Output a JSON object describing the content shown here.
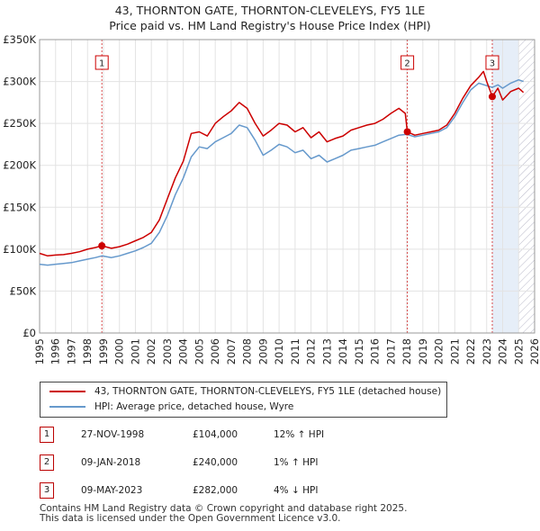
{
  "header": {
    "title_line1": "43, THORNTON GATE, THORNTON-CLEVELEYS, FY5 1LE",
    "title_line2": "Price paid vs. HM Land Registry's House Price Index (HPI)"
  },
  "chart_data": {
    "type": "line",
    "xlim": [
      1995,
      2026
    ],
    "ylim": [
      0,
      350000
    ],
    "x_ticks": [
      "1995",
      "1996",
      "1997",
      "1998",
      "1999",
      "2000",
      "2001",
      "2002",
      "2003",
      "2004",
      "2005",
      "2006",
      "2007",
      "2008",
      "2009",
      "2010",
      "2011",
      "2012",
      "2013",
      "2014",
      "2015",
      "2016",
      "2017",
      "2018",
      "2019",
      "2020",
      "2021",
      "2022",
      "2023",
      "2024",
      "2025",
      "2026"
    ],
    "y_ticks": [
      {
        "value": 0,
        "label": "£0"
      },
      {
        "value": 50000,
        "label": "£50K"
      },
      {
        "value": 100000,
        "label": "£100K"
      },
      {
        "value": 150000,
        "label": "£150K"
      },
      {
        "value": 200000,
        "label": "£200K"
      },
      {
        "value": 250000,
        "label": "£250K"
      },
      {
        "value": 300000,
        "label": "£300K"
      },
      {
        "value": 350000,
        "label": "£350K"
      }
    ],
    "colors": {
      "property": "#cc0000",
      "hpi": "#6699cc",
      "highlight": "#e6eef8",
      "hatch": "#b8b8c8",
      "grid": "#e3e3e3"
    },
    "series": [
      {
        "name": "43, THORNTON GATE, THORNTON-CLEVELEYS, FY5 1LE (detached house)",
        "color": "#cc0000",
        "points": [
          [
            1995.0,
            95000
          ],
          [
            1995.5,
            92000
          ],
          [
            1996.0,
            93000
          ],
          [
            1996.5,
            93500
          ],
          [
            1997.0,
            95000
          ],
          [
            1997.5,
            97000
          ],
          [
            1998.0,
            100000
          ],
          [
            1998.5,
            102000
          ],
          [
            1998.9,
            104000
          ],
          [
            1999.5,
            101000
          ],
          [
            2000.0,
            103000
          ],
          [
            2000.5,
            106000
          ],
          [
            2001.0,
            110000
          ],
          [
            2001.5,
            114000
          ],
          [
            2002.0,
            120000
          ],
          [
            2002.5,
            135000
          ],
          [
            2003.0,
            160000
          ],
          [
            2003.5,
            185000
          ],
          [
            2004.0,
            205000
          ],
          [
            2004.5,
            238000
          ],
          [
            2005.0,
            240000
          ],
          [
            2005.5,
            235000
          ],
          [
            2006.0,
            250000
          ],
          [
            2006.5,
            258000
          ],
          [
            2007.0,
            265000
          ],
          [
            2007.5,
            275000
          ],
          [
            2008.0,
            268000
          ],
          [
            2008.5,
            250000
          ],
          [
            2009.0,
            235000
          ],
          [
            2009.5,
            242000
          ],
          [
            2010.0,
            250000
          ],
          [
            2010.5,
            248000
          ],
          [
            2011.0,
            240000
          ],
          [
            2011.5,
            245000
          ],
          [
            2012.0,
            233000
          ],
          [
            2012.5,
            240000
          ],
          [
            2013.0,
            228000
          ],
          [
            2013.5,
            232000
          ],
          [
            2014.0,
            235000
          ],
          [
            2014.5,
            242000
          ],
          [
            2015.0,
            245000
          ],
          [
            2015.5,
            248000
          ],
          [
            2016.0,
            250000
          ],
          [
            2016.5,
            255000
          ],
          [
            2017.0,
            262000
          ],
          [
            2017.5,
            268000
          ],
          [
            2017.9,
            262000
          ],
          [
            2018.03,
            240000
          ],
          [
            2018.5,
            236000
          ],
          [
            2019.0,
            238000
          ],
          [
            2019.5,
            240000
          ],
          [
            2020.0,
            242000
          ],
          [
            2020.5,
            248000
          ],
          [
            2021.0,
            262000
          ],
          [
            2021.5,
            280000
          ],
          [
            2022.0,
            295000
          ],
          [
            2022.5,
            305000
          ],
          [
            2022.8,
            312000
          ],
          [
            2023.0,
            300000
          ],
          [
            2023.35,
            282000
          ],
          [
            2023.7,
            292000
          ],
          [
            2024.0,
            278000
          ],
          [
            2024.5,
            288000
          ],
          [
            2025.0,
            292000
          ],
          [
            2025.3,
            287000
          ]
        ]
      },
      {
        "name": "HPI: Average price, detached house, Wyre",
        "color": "#6699cc",
        "points": [
          [
            1995.0,
            82000
          ],
          [
            1995.5,
            81000
          ],
          [
            1996.0,
            82000
          ],
          [
            1996.5,
            83000
          ],
          [
            1997.0,
            84000
          ],
          [
            1997.5,
            86000
          ],
          [
            1998.0,
            88000
          ],
          [
            1998.5,
            90000
          ],
          [
            1998.9,
            92000
          ],
          [
            1999.5,
            90000
          ],
          [
            2000.0,
            92000
          ],
          [
            2000.5,
            95000
          ],
          [
            2001.0,
            98000
          ],
          [
            2001.5,
            102000
          ],
          [
            2002.0,
            107000
          ],
          [
            2002.5,
            120000
          ],
          [
            2003.0,
            140000
          ],
          [
            2003.5,
            165000
          ],
          [
            2004.0,
            185000
          ],
          [
            2004.5,
            210000
          ],
          [
            2005.0,
            222000
          ],
          [
            2005.5,
            220000
          ],
          [
            2006.0,
            228000
          ],
          [
            2006.5,
            233000
          ],
          [
            2007.0,
            238000
          ],
          [
            2007.5,
            248000
          ],
          [
            2008.0,
            245000
          ],
          [
            2008.5,
            230000
          ],
          [
            2009.0,
            212000
          ],
          [
            2009.5,
            218000
          ],
          [
            2010.0,
            225000
          ],
          [
            2010.5,
            222000
          ],
          [
            2011.0,
            215000
          ],
          [
            2011.5,
            218000
          ],
          [
            2012.0,
            208000
          ],
          [
            2012.5,
            212000
          ],
          [
            2013.0,
            204000
          ],
          [
            2013.5,
            208000
          ],
          [
            2014.0,
            212000
          ],
          [
            2014.5,
            218000
          ],
          [
            2015.0,
            220000
          ],
          [
            2015.5,
            222000
          ],
          [
            2016.0,
            224000
          ],
          [
            2016.5,
            228000
          ],
          [
            2017.0,
            232000
          ],
          [
            2017.5,
            236000
          ],
          [
            2018.0,
            237000
          ],
          [
            2018.5,
            234000
          ],
          [
            2019.0,
            236000
          ],
          [
            2019.5,
            238000
          ],
          [
            2020.0,
            240000
          ],
          [
            2020.5,
            245000
          ],
          [
            2021.0,
            258000
          ],
          [
            2021.5,
            275000
          ],
          [
            2022.0,
            290000
          ],
          [
            2022.5,
            298000
          ],
          [
            2023.0,
            295000
          ],
          [
            2023.35,
            293000
          ],
          [
            2023.7,
            296000
          ],
          [
            2024.0,
            292000
          ],
          [
            2024.5,
            298000
          ],
          [
            2025.0,
            302000
          ],
          [
            2025.3,
            300000
          ]
        ]
      }
    ],
    "markers": [
      {
        "label": "1",
        "x": 1998.9,
        "y": 104000
      },
      {
        "label": "2",
        "x": 2018.03,
        "y": 240000
      },
      {
        "label": "3",
        "x": 2023.35,
        "y": 282000
      }
    ],
    "highlight_range": [
      2023.35,
      2025.0
    ],
    "projection_from": 2025.0
  },
  "legend": {
    "property_label": "43, THORNTON GATE, THORNTON-CLEVELEYS, FY5 1LE (detached house)",
    "hpi_label": "HPI: Average price, detached house, Wyre"
  },
  "transactions": [
    {
      "num": "1",
      "date": "27-NOV-1998",
      "price": "£104,000",
      "hpi": "12% ↑ HPI"
    },
    {
      "num": "2",
      "date": "09-JAN-2018",
      "price": "£240,000",
      "hpi": "1% ↑ HPI"
    },
    {
      "num": "3",
      "date": "09-MAY-2023",
      "price": "£282,000",
      "hpi": "4% ↓ HPI"
    }
  ],
  "footer": {
    "line1": "Contains HM Land Registry data © Crown copyright and database right 2025.",
    "line2": "This data is licensed under the Open Government Licence v3.0."
  }
}
